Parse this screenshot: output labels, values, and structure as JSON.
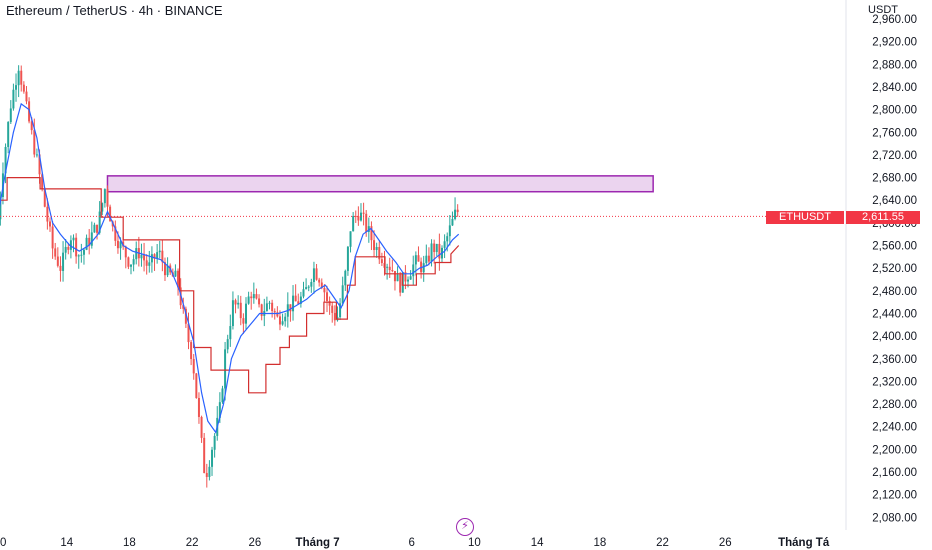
{
  "header": {
    "title": "Ethereum / TetherUS · 4h · BINANCE",
    "unit": "USDT"
  },
  "price_tag": {
    "symbol": "ETHUSDT",
    "value": "2,611.55"
  },
  "event_icon": "lightning-bolt-icon",
  "colors": {
    "up": "#26a69a",
    "down": "#ef5350",
    "ma_blue": "#2962ff",
    "line_red": "#d32f2f",
    "zone": "#9c27b0"
  },
  "chart_data": {
    "type": "candlestick",
    "y_ticks": [
      "2,960.00",
      "2,920.00",
      "2,880.00",
      "2,840.00",
      "2,800.00",
      "2,760.00",
      "2,720.00",
      "2,680.00",
      "2,640.00",
      "2,600.00",
      "2,560.00",
      "2,520.00",
      "2,480.00",
      "2,440.00",
      "2,400.00",
      "2,360.00",
      "2,320.00",
      "2,280.00",
      "2,240.00",
      "2,200.00",
      "2,160.00",
      "2,120.00",
      "2,080.00"
    ],
    "y_tick_values": [
      2960,
      2920,
      2880,
      2840,
      2800,
      2760,
      2720,
      2680,
      2640,
      2600,
      2560,
      2520,
      2480,
      2440,
      2400,
      2360,
      2320,
      2280,
      2240,
      2200,
      2160,
      2120,
      2080
    ],
    "x_ticks": [
      {
        "label": "0",
        "day": 10
      },
      {
        "label": "14",
        "day": 14
      },
      {
        "label": "18",
        "day": 18
      },
      {
        "label": "22",
        "day": 22
      },
      {
        "label": "26",
        "day": 26
      },
      {
        "label": "Tháng 7",
        "day": 30,
        "bold": true
      },
      {
        "label": "6",
        "day": 36
      },
      {
        "label": "10",
        "day": 40
      },
      {
        "label": "14",
        "day": 44
      },
      {
        "label": "18",
        "day": 48
      },
      {
        "label": "22",
        "day": 52
      },
      {
        "label": "26",
        "day": 56
      },
      {
        "label": "Tháng Tá",
        "day": 61,
        "bold": true
      }
    ],
    "last_price": 2611.55,
    "resistance_zone": {
      "low": 2655,
      "high": 2683,
      "start_day": 16.6,
      "end_day": 51.4
    },
    "anchor_points": [
      [
        9.6,
        2560
      ],
      [
        10.1,
        2700
      ],
      [
        10.6,
        2810
      ],
      [
        11.1,
        2880
      ],
      [
        11.6,
        2800
      ],
      [
        12.2,
        2720
      ],
      [
        12.7,
        2640
      ],
      [
        13.3,
        2550
      ],
      [
        13.8,
        2520
      ],
      [
        14.4,
        2580
      ],
      [
        15.0,
        2540
      ],
      [
        15.6,
        2570
      ],
      [
        16.2,
        2600
      ],
      [
        16.6,
        2660
      ],
      [
        17.1,
        2590
      ],
      [
        17.6,
        2560
      ],
      [
        18.2,
        2530
      ],
      [
        18.8,
        2550
      ],
      [
        19.4,
        2520
      ],
      [
        20.0,
        2550
      ],
      [
        20.6,
        2510
      ],
      [
        21.2,
        2500
      ],
      [
        21.7,
        2420
      ],
      [
        22.2,
        2360
      ],
      [
        22.6,
        2250
      ],
      [
        23.0,
        2150
      ],
      [
        23.4,
        2200
      ],
      [
        23.9,
        2260
      ],
      [
        24.3,
        2380
      ],
      [
        24.8,
        2460
      ],
      [
        25.4,
        2430
      ],
      [
        25.9,
        2480
      ],
      [
        26.5,
        2440
      ],
      [
        27.1,
        2460
      ],
      [
        27.6,
        2430
      ],
      [
        28.2,
        2450
      ],
      [
        28.8,
        2460
      ],
      [
        29.3,
        2470
      ],
      [
        29.9,
        2520
      ],
      [
        30.4,
        2500
      ],
      [
        30.9,
        2450
      ],
      [
        31.4,
        2430
      ],
      [
        31.9,
        2500
      ],
      [
        32.3,
        2600
      ],
      [
        32.8,
        2620
      ],
      [
        33.3,
        2590
      ],
      [
        33.8,
        2560
      ],
      [
        34.3,
        2540
      ],
      [
        34.9,
        2520
      ],
      [
        35.4,
        2490
      ],
      [
        35.9,
        2510
      ],
      [
        36.4,
        2530
      ],
      [
        37.0,
        2520
      ],
      [
        37.5,
        2560
      ],
      [
        38.0,
        2540
      ],
      [
        38.5,
        2580
      ],
      [
        39.0,
        2620
      ]
    ],
    "ma_blue_points": [
      [
        9.6,
        2610
      ],
      [
        10.1,
        2690
      ],
      [
        10.6,
        2760
      ],
      [
        11.1,
        2810
      ],
      [
        11.6,
        2800
      ],
      [
        12.1,
        2750
      ],
      [
        12.6,
        2660
      ],
      [
        13.1,
        2600
      ],
      [
        13.6,
        2580
      ],
      [
        14.2,
        2560
      ],
      [
        14.8,
        2550
      ],
      [
        15.4,
        2560
      ],
      [
        16.0,
        2580
      ],
      [
        16.6,
        2620
      ],
      [
        17.1,
        2590
      ],
      [
        17.6,
        2560
      ],
      [
        18.2,
        2550
      ],
      [
        18.8,
        2545
      ],
      [
        19.4,
        2540
      ],
      [
        20.0,
        2535
      ],
      [
        20.6,
        2520
      ],
      [
        21.2,
        2480
      ],
      [
        21.6,
        2440
      ],
      [
        22.1,
        2390
      ],
      [
        22.6,
        2300
      ],
      [
        23.0,
        2250
      ],
      [
        23.5,
        2230
      ],
      [
        24.0,
        2280
      ],
      [
        24.5,
        2360
      ],
      [
        25.1,
        2400
      ],
      [
        25.7,
        2420
      ],
      [
        26.3,
        2440
      ],
      [
        26.9,
        2440
      ],
      [
        27.5,
        2440
      ],
      [
        28.1,
        2445
      ],
      [
        28.7,
        2455
      ],
      [
        29.3,
        2465
      ],
      [
        29.9,
        2480
      ],
      [
        30.5,
        2490
      ],
      [
        31.0,
        2470
      ],
      [
        31.5,
        2450
      ],
      [
        32.0,
        2480
      ],
      [
        32.4,
        2540
      ],
      [
        32.9,
        2580
      ],
      [
        33.4,
        2590
      ],
      [
        33.9,
        2570
      ],
      [
        34.4,
        2550
      ],
      [
        35.0,
        2530
      ],
      [
        35.5,
        2510
      ],
      [
        36.0,
        2510
      ],
      [
        36.5,
        2520
      ],
      [
        37.0,
        2525
      ],
      [
        37.6,
        2540
      ],
      [
        38.1,
        2550
      ],
      [
        38.6,
        2570
      ],
      [
        39.0,
        2580
      ]
    ],
    "line_red_points": [
      [
        9.6,
        2560
      ],
      [
        9.6,
        2640
      ],
      [
        10.2,
        2640
      ],
      [
        10.2,
        2680
      ],
      [
        12.3,
        2680
      ],
      [
        12.3,
        2660
      ],
      [
        16.2,
        2660
      ],
      [
        16.2,
        2610
      ],
      [
        17.6,
        2610
      ],
      [
        17.6,
        2570
      ],
      [
        21.2,
        2570
      ],
      [
        21.2,
        2480
      ],
      [
        22.1,
        2480
      ],
      [
        22.1,
        2380
      ],
      [
        23.2,
        2380
      ],
      [
        23.2,
        2340
      ],
      [
        25.6,
        2340
      ],
      [
        25.6,
        2300
      ],
      [
        26.7,
        2300
      ],
      [
        26.7,
        2350
      ],
      [
        27.6,
        2350
      ],
      [
        27.6,
        2380
      ],
      [
        28.2,
        2380
      ],
      [
        28.2,
        2400
      ],
      [
        29.3,
        2400
      ],
      [
        29.3,
        2440
      ],
      [
        30.4,
        2440
      ],
      [
        30.4,
        2460
      ],
      [
        31.2,
        2460
      ],
      [
        31.2,
        2430
      ],
      [
        31.9,
        2430
      ],
      [
        31.9,
        2490
      ],
      [
        32.4,
        2490
      ],
      [
        32.4,
        2540
      ],
      [
        34.3,
        2540
      ],
      [
        34.3,
        2510
      ],
      [
        35.4,
        2510
      ],
      [
        35.4,
        2490
      ],
      [
        36.3,
        2490
      ],
      [
        36.3,
        2510
      ],
      [
        37.5,
        2510
      ],
      [
        37.5,
        2530
      ],
      [
        38.5,
        2530
      ],
      [
        38.5,
        2545
      ],
      [
        39.0,
        2560
      ]
    ]
  }
}
